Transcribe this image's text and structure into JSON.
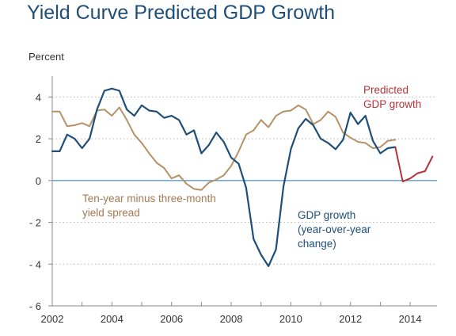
{
  "chart_data": {
    "type": "line",
    "title": "Yield Curve Predicted GDP Growth",
    "ylabel": "Percent",
    "ylim": [
      -6,
      5
    ],
    "xlim": [
      2002,
      2014.9
    ],
    "grid": "horizontal dotted",
    "yticks": [
      4,
      2,
      0,
      -2,
      -4,
      -6
    ],
    "ytick_labels": [
      "4",
      "2",
      "0",
      "- 2",
      "- 4",
      "- 6"
    ],
    "xticks": [
      2002,
      2004,
      2006,
      2008,
      2010,
      2012,
      2014
    ],
    "series": [
      {
        "color": "#b59268",
        "x": [
          2002.0,
          2002.25,
          2002.5,
          2002.75,
          2003.0,
          2003.25,
          2003.5,
          2003.75,
          2004.0,
          2004.25,
          2004.5,
          2004.75,
          2005.0,
          2005.25,
          2005.5,
          2005.75,
          2006.0,
          2006.25,
          2006.5,
          2006.75,
          2007.0,
          2007.25,
          2007.5,
          2007.75,
          2008.0,
          2008.25,
          2008.5,
          2008.75,
          2009.0,
          2009.25,
          2009.5,
          2009.75,
          2010.0,
          2010.25,
          2010.5,
          2010.75,
          2011.0,
          2011.25,
          2011.5,
          2011.75,
          2012.0,
          2012.25,
          2012.5,
          2012.75,
          2013.0,
          2013.25,
          2013.5
        ],
        "y": [
          3.3,
          3.3,
          2.6,
          2.65,
          2.75,
          2.6,
          3.35,
          3.4,
          3.1,
          3.5,
          2.9,
          2.2,
          1.8,
          1.3,
          0.85,
          0.6,
          0.1,
          0.25,
          -0.15,
          -0.4,
          -0.45,
          -0.1,
          0.05,
          0.25,
          0.7,
          1.4,
          2.2,
          2.4,
          2.9,
          2.55,
          3.1,
          3.3,
          3.35,
          3.6,
          3.4,
          2.7,
          2.9,
          3.3,
          3.05,
          2.3,
          2.05,
          1.85,
          1.8,
          1.55,
          1.6,
          1.9,
          1.95
        ]
      },
      {
        "color": "#1f4e79",
        "x": [
          2002.0,
          2002.25,
          2002.5,
          2002.75,
          2003.0,
          2003.25,
          2003.5,
          2003.75,
          2004.0,
          2004.25,
          2004.5,
          2004.75,
          2005.0,
          2005.25,
          2005.5,
          2005.75,
          2006.0,
          2006.25,
          2006.5,
          2006.75,
          2007.0,
          2007.25,
          2007.5,
          2007.75,
          2008.0,
          2008.25,
          2008.5,
          2008.75,
          2009.0,
          2009.25,
          2009.5,
          2009.75,
          2010.0,
          2010.25,
          2010.5,
          2010.75,
          2011.0,
          2011.25,
          2011.5,
          2011.75,
          2012.0,
          2012.25,
          2012.5,
          2012.75,
          2013.0,
          2013.25,
          2013.5
        ],
        "y": [
          1.4,
          1.4,
          2.2,
          2.0,
          1.55,
          2.0,
          3.4,
          4.3,
          4.4,
          4.3,
          3.4,
          3.1,
          3.6,
          3.35,
          3.3,
          3.0,
          3.1,
          2.9,
          2.2,
          2.4,
          1.3,
          1.7,
          2.3,
          1.85,
          1.1,
          0.8,
          -0.35,
          -2.8,
          -3.55,
          -4.1,
          -3.3,
          -0.3,
          1.5,
          2.5,
          2.95,
          2.65,
          2.0,
          1.8,
          1.5,
          1.95,
          3.25,
          2.7,
          3.1,
          1.9,
          1.3,
          1.55,
          1.6
        ]
      },
      {
        "color": "#b5343a",
        "x": [
          2013.5,
          2013.75,
          2014.0,
          2014.25,
          2014.5,
          2014.75
        ],
        "y": [
          1.6,
          -0.05,
          0.1,
          0.35,
          0.45,
          1.15
        ]
      }
    ],
    "annotations": [
      {
        "text_lines": [
          "Predicted",
          "GDP growth"
        ],
        "color": "#b5343a"
      },
      {
        "text_lines": [
          "Ten-year minus three-month",
          "yield spread"
        ],
        "color": "#a47a52"
      },
      {
        "text_lines": [
          "GDP growth",
          "(year-over-year",
          "change)"
        ],
        "color": "#1f4e79"
      }
    ]
  }
}
